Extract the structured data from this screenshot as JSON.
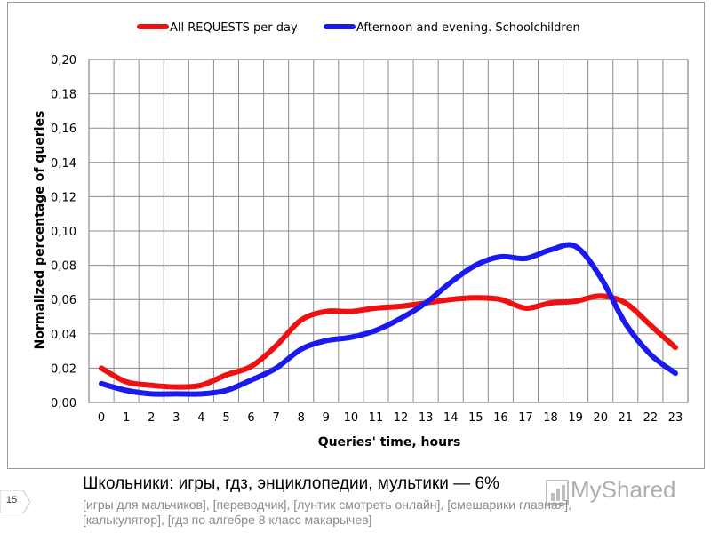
{
  "chart_data": {
    "type": "line",
    "xlabel": "Queries' time, hours",
    "ylabel": "Normalized percentage of queries",
    "x": [
      0,
      1,
      2,
      3,
      4,
      5,
      6,
      7,
      8,
      9,
      10,
      11,
      12,
      13,
      14,
      15,
      16,
      17,
      18,
      19,
      20,
      21,
      22,
      23
    ],
    "x_ticks": [
      "0",
      "1",
      "2",
      "3",
      "4",
      "5",
      "6",
      "7",
      "8",
      "9",
      "10",
      "11",
      "12",
      "13",
      "14",
      "15",
      "16",
      "17",
      "18",
      "19",
      "20",
      "21",
      "22",
      "23"
    ],
    "ylim": [
      0,
      0.2
    ],
    "y_ticks": [
      0,
      0.02,
      0.04,
      0.06,
      0.08,
      0.1,
      0.12,
      0.14,
      0.16,
      0.18,
      0.2
    ],
    "y_tick_labels": [
      "0,00",
      "0,02",
      "0,04",
      "0,06",
      "0,08",
      "0,10",
      "0,12",
      "0,14",
      "0,16",
      "0,18",
      "0,20"
    ],
    "grid": true,
    "legend_position": "top",
    "series": [
      {
        "name": "All REQUESTS per day",
        "color": "#ee1111",
        "values": [
          0.02,
          0.012,
          0.01,
          0.009,
          0.01,
          0.016,
          0.021,
          0.033,
          0.048,
          0.053,
          0.053,
          0.055,
          0.056,
          0.058,
          0.06,
          0.061,
          0.06,
          0.055,
          0.058,
          0.059,
          0.062,
          0.058,
          0.045,
          0.032
        ]
      },
      {
        "name": "Afternoon and evening. Schoolchildren",
        "color": "#1a1aee",
        "values": [
          0.011,
          0.007,
          0.005,
          0.005,
          0.005,
          0.007,
          0.013,
          0.02,
          0.031,
          0.036,
          0.038,
          0.042,
          0.049,
          0.058,
          0.07,
          0.08,
          0.085,
          0.084,
          0.089,
          0.091,
          0.073,
          0.046,
          0.028,
          0.017
        ]
      }
    ]
  },
  "caption": {
    "title": "Школьники: игры, гдз, энциклопедии, мультики — 6%",
    "queries": "[игры для мальчиков], [переводчик], [лунтик смотреть онлайн], [смешарики главная], [калькулятор], [гдз по алгебре 8 класс макарычев]"
  },
  "slide": {
    "number": "15"
  },
  "watermark": {
    "text": "MyShared",
    "icon": "chart-logo-icon"
  }
}
